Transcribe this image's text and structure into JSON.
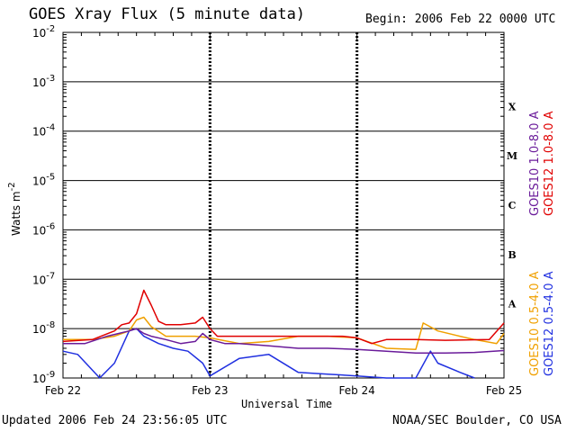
{
  "header": {
    "title": "GOES Xray Flux (5 minute data)",
    "begin": "Begin:  2006 Feb 22 0000 UTC"
  },
  "footer": {
    "updated": "Updated 2006 Feb 24 23:56:05 UTC",
    "credit": "NOAA/SEC Boulder, CO USA"
  },
  "colors": {
    "goes10_long": "#6a1b9a",
    "goes12_long": "#e00000",
    "goes10_short": "#f0a000",
    "goes12_short": "#2030e0"
  },
  "chart_data": {
    "type": "line",
    "title": "GOES Xray Flux (5 minute data)",
    "xlabel": "Universal Time",
    "ylabel": "Watts m",
    "ylabel_sup": "-2",
    "log_scale_y": true,
    "ylim": [
      1e-09,
      0.01
    ],
    "y_ticks": [
      {
        "exp": -9,
        "label": "10",
        "sup": "-9"
      },
      {
        "exp": -8,
        "label": "10",
        "sup": "-8"
      },
      {
        "exp": -7,
        "label": "10",
        "sup": "-7"
      },
      {
        "exp": -6,
        "label": "10",
        "sup": "-6"
      },
      {
        "exp": -5,
        "label": "10",
        "sup": "-5"
      },
      {
        "exp": -4,
        "label": "10",
        "sup": "-4"
      },
      {
        "exp": -3,
        "label": "10",
        "sup": "-3"
      },
      {
        "exp": -2,
        "label": "10",
        "sup": "-2"
      }
    ],
    "x_ticks": [
      "Feb 22",
      "Feb 23",
      "Feb 24",
      "Feb 25"
    ],
    "xlim_days": [
      0,
      3
    ],
    "flare_classes": [
      {
        "label": "A",
        "exp": -7.5
      },
      {
        "label": "B",
        "exp": -6.5
      },
      {
        "label": "C",
        "exp": -5.5
      },
      {
        "label": "M",
        "exp": -4.5
      },
      {
        "label": "X",
        "exp": -3.5
      }
    ],
    "grid": "horizontal lines at each decade",
    "series": [
      {
        "name": "GOES10 1.0-8.0 A",
        "color": "#6a1b9a",
        "points": [
          [
            0,
            5e-09
          ],
          [
            0.15,
            5e-09
          ],
          [
            0.3,
            7e-09
          ],
          [
            0.45,
            9e-09
          ],
          [
            0.5,
            1e-08
          ],
          [
            0.55,
            8e-09
          ],
          [
            0.6,
            7e-09
          ],
          [
            0.7,
            6e-09
          ],
          [
            0.8,
            5e-09
          ],
          [
            0.9,
            5.5e-09
          ],
          [
            0.95,
            8e-09
          ],
          [
            1.0,
            6e-09
          ],
          [
            1.1,
            5e-09
          ],
          [
            1.2,
            5e-09
          ],
          [
            1.4,
            4.5e-09
          ],
          [
            1.6,
            4e-09
          ],
          [
            1.8,
            4e-09
          ],
          [
            2.0,
            3.8e-09
          ],
          [
            2.2,
            3.5e-09
          ],
          [
            2.4,
            3.2e-09
          ],
          [
            2.6,
            3.2e-09
          ],
          [
            2.8,
            3.3e-09
          ],
          [
            3.0,
            3.6e-09
          ]
        ]
      },
      {
        "name": "GOES12 1.0-8.0 A",
        "color": "#e00000",
        "points": [
          [
            0,
            5.5e-09
          ],
          [
            0.2,
            6e-09
          ],
          [
            0.35,
            9e-09
          ],
          [
            0.4,
            1.2e-08
          ],
          [
            0.45,
            1.3e-08
          ],
          [
            0.5,
            2e-08
          ],
          [
            0.55,
            6e-08
          ],
          [
            0.6,
            3e-08
          ],
          [
            0.65,
            1.4e-08
          ],
          [
            0.7,
            1.2e-08
          ],
          [
            0.8,
            1.2e-08
          ],
          [
            0.9,
            1.3e-08
          ],
          [
            0.95,
            1.7e-08
          ],
          [
            1.0,
            1e-08
          ],
          [
            1.05,
            7e-09
          ],
          [
            1.9,
            7e-09
          ],
          [
            2.0,
            6.5e-09
          ],
          [
            2.1,
            5e-09
          ],
          [
            2.2,
            6e-09
          ],
          [
            2.4,
            6e-09
          ],
          [
            2.6,
            5.8e-09
          ],
          [
            2.9,
            6e-09
          ],
          [
            3.0,
            1.3e-08
          ]
        ]
      },
      {
        "name": "GOES10 0.5-4.0 A",
        "color": "#f0a000",
        "points": [
          [
            0,
            6e-09
          ],
          [
            0.2,
            6e-09
          ],
          [
            0.35,
            7e-09
          ],
          [
            0.45,
            9e-09
          ],
          [
            0.5,
            1.5e-08
          ],
          [
            0.55,
            1.7e-08
          ],
          [
            0.6,
            1.1e-08
          ],
          [
            0.7,
            7e-09
          ],
          [
            0.9,
            7e-09
          ],
          [
            1.0,
            6.5e-09
          ],
          [
            1.2,
            5e-09
          ],
          [
            1.4,
            5.5e-09
          ],
          [
            1.6,
            7e-09
          ],
          [
            1.8,
            7e-09
          ],
          [
            2.0,
            6.5e-09
          ],
          [
            2.2,
            4e-09
          ],
          [
            2.4,
            3.8e-09
          ],
          [
            2.45,
            1.3e-08
          ],
          [
            2.55,
            9e-09
          ],
          [
            2.7,
            7e-09
          ],
          [
            2.8,
            6e-09
          ],
          [
            2.95,
            5e-09
          ],
          [
            3.0,
            8e-09
          ]
        ]
      },
      {
        "name": "GOES12 0.5-4.0 A",
        "color": "#2030e0",
        "points": [
          [
            0,
            3.5e-09
          ],
          [
            0.1,
            3e-09
          ],
          [
            0.25,
            1e-09
          ],
          [
            0.35,
            2e-09
          ],
          [
            0.45,
            9e-09
          ],
          [
            0.5,
            1e-08
          ],
          [
            0.55,
            7e-09
          ],
          [
            0.65,
            5e-09
          ],
          [
            0.75,
            4e-09
          ],
          [
            0.85,
            3.5e-09
          ],
          [
            0.95,
            2e-09
          ],
          [
            1.0,
            1.1e-09
          ],
          [
            1.2,
            2.5e-09
          ],
          [
            1.4,
            3e-09
          ],
          [
            1.6,
            1.3e-09
          ],
          [
            1.8,
            1.2e-09
          ],
          [
            2.0,
            1.1e-09
          ],
          [
            2.2,
            1e-09
          ],
          [
            2.4,
            1e-09
          ],
          [
            2.5,
            3.5e-09
          ],
          [
            2.55,
            2e-09
          ],
          [
            2.7,
            1.3e-09
          ],
          [
            2.8,
            1e-09
          ]
        ]
      }
    ]
  }
}
